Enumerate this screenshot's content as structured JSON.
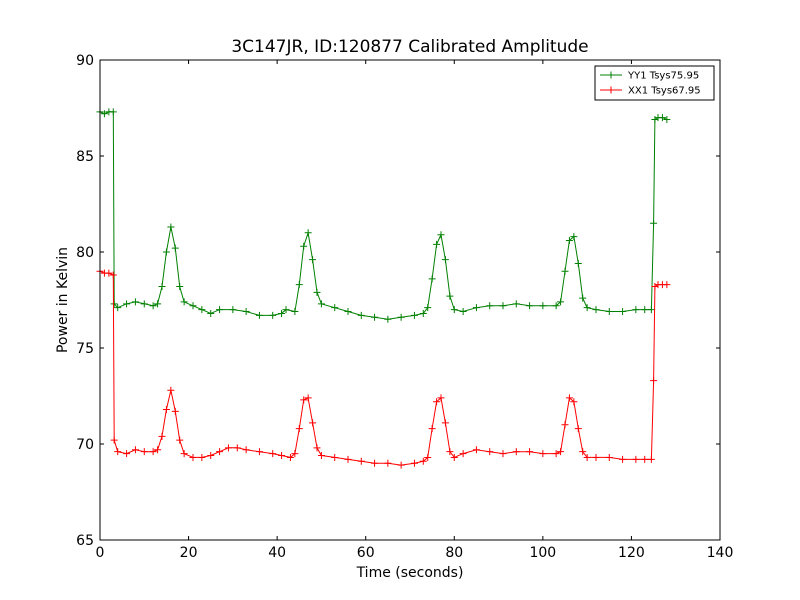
{
  "chart_data": {
    "type": "line",
    "title": "3C147JR, ID:120877 Calibrated Amplitude",
    "xlabel": "Time (seconds)",
    "ylabel": "Power in Kelvin",
    "xlim": [
      0,
      140
    ],
    "ylim": [
      65,
      90
    ],
    "xticks": [
      0,
      20,
      40,
      60,
      80,
      100,
      120,
      140
    ],
    "yticks": [
      65,
      70,
      75,
      80,
      85,
      90
    ],
    "grid": false,
    "legend_position": "top-right",
    "marker": "+",
    "series": [
      {
        "name": "YY1 Tsys75.95",
        "color": "#008000",
        "points": [
          [
            0,
            87.3
          ],
          [
            1,
            87.2
          ],
          [
            2,
            87.3
          ],
          [
            3,
            87.3
          ],
          [
            3.2,
            77.3
          ],
          [
            4,
            77.1
          ],
          [
            6,
            77.3
          ],
          [
            8,
            77.4
          ],
          [
            10,
            77.3
          ],
          [
            12,
            77.2
          ],
          [
            13,
            77.3
          ],
          [
            14,
            78.2
          ],
          [
            15,
            80.0
          ],
          [
            16,
            81.3
          ],
          [
            17,
            80.2
          ],
          [
            18,
            78.2
          ],
          [
            19,
            77.4
          ],
          [
            21,
            77.2
          ],
          [
            23,
            77.0
          ],
          [
            25,
            76.8
          ],
          [
            27,
            77.0
          ],
          [
            30,
            77.0
          ],
          [
            33,
            76.9
          ],
          [
            36,
            76.7
          ],
          [
            39,
            76.7
          ],
          [
            41,
            76.8
          ],
          [
            42,
            77.0
          ],
          [
            44,
            76.9
          ],
          [
            45,
            78.3
          ],
          [
            46,
            80.3
          ],
          [
            47,
            81.0
          ],
          [
            48,
            79.6
          ],
          [
            49,
            77.9
          ],
          [
            50,
            77.3
          ],
          [
            53,
            77.1
          ],
          [
            56,
            76.9
          ],
          [
            59,
            76.7
          ],
          [
            62,
            76.6
          ],
          [
            65,
            76.5
          ],
          [
            68,
            76.6
          ],
          [
            71,
            76.7
          ],
          [
            73,
            76.8
          ],
          [
            74,
            77.1
          ],
          [
            75,
            78.6
          ],
          [
            76,
            80.4
          ],
          [
            77,
            80.9
          ],
          [
            78,
            79.6
          ],
          [
            79,
            77.7
          ],
          [
            80,
            77.0
          ],
          [
            82,
            76.9
          ],
          [
            85,
            77.1
          ],
          [
            88,
            77.2
          ],
          [
            91,
            77.2
          ],
          [
            94,
            77.3
          ],
          [
            97,
            77.2
          ],
          [
            100,
            77.2
          ],
          [
            103,
            77.2
          ],
          [
            104,
            77.4
          ],
          [
            105,
            79.0
          ],
          [
            106,
            80.6
          ],
          [
            107,
            80.8
          ],
          [
            108,
            79.4
          ],
          [
            109,
            77.6
          ],
          [
            110,
            77.1
          ],
          [
            112,
            77.0
          ],
          [
            115,
            76.9
          ],
          [
            118,
            76.9
          ],
          [
            121,
            77.0
          ],
          [
            123,
            77.0
          ],
          [
            124.5,
            77.0
          ],
          [
            125,
            81.5
          ],
          [
            125.3,
            86.9
          ],
          [
            126,
            87.0
          ],
          [
            127,
            87.0
          ],
          [
            128,
            86.9
          ]
        ]
      },
      {
        "name": "XX1 Tsys67.95",
        "color": "#ff0000",
        "points": [
          [
            0,
            79.0
          ],
          [
            1,
            78.9
          ],
          [
            2,
            78.9
          ],
          [
            3,
            78.8
          ],
          [
            3.2,
            70.2
          ],
          [
            4,
            69.6
          ],
          [
            6,
            69.5
          ],
          [
            8,
            69.7
          ],
          [
            10,
            69.6
          ],
          [
            12,
            69.6
          ],
          [
            13,
            69.7
          ],
          [
            14,
            70.4
          ],
          [
            15,
            71.8
          ],
          [
            16,
            72.8
          ],
          [
            17,
            71.7
          ],
          [
            18,
            70.2
          ],
          [
            19,
            69.5
          ],
          [
            21,
            69.3
          ],
          [
            23,
            69.3
          ],
          [
            25,
            69.4
          ],
          [
            27,
            69.6
          ],
          [
            29,
            69.8
          ],
          [
            31,
            69.8
          ],
          [
            33,
            69.7
          ],
          [
            36,
            69.6
          ],
          [
            39,
            69.5
          ],
          [
            41,
            69.4
          ],
          [
            43,
            69.3
          ],
          [
            44,
            69.5
          ],
          [
            45,
            70.8
          ],
          [
            46,
            72.3
          ],
          [
            47,
            72.4
          ],
          [
            48,
            71.1
          ],
          [
            49,
            69.8
          ],
          [
            50,
            69.4
          ],
          [
            53,
            69.3
          ],
          [
            56,
            69.2
          ],
          [
            59,
            69.1
          ],
          [
            62,
            69.0
          ],
          [
            65,
            69.0
          ],
          [
            68,
            68.9
          ],
          [
            71,
            69.0
          ],
          [
            73,
            69.1
          ],
          [
            74,
            69.3
          ],
          [
            75,
            70.8
          ],
          [
            76,
            72.2
          ],
          [
            77,
            72.4
          ],
          [
            78,
            71.1
          ],
          [
            79,
            69.6
          ],
          [
            80,
            69.3
          ],
          [
            82,
            69.5
          ],
          [
            85,
            69.7
          ],
          [
            88,
            69.6
          ],
          [
            91,
            69.5
          ],
          [
            94,
            69.6
          ],
          [
            97,
            69.6
          ],
          [
            100,
            69.5
          ],
          [
            103,
            69.5
          ],
          [
            104,
            69.6
          ],
          [
            105,
            71.0
          ],
          [
            106,
            72.4
          ],
          [
            107,
            72.2
          ],
          [
            108,
            70.8
          ],
          [
            109,
            69.6
          ],
          [
            110,
            69.3
          ],
          [
            112,
            69.3
          ],
          [
            115,
            69.3
          ],
          [
            118,
            69.2
          ],
          [
            121,
            69.2
          ],
          [
            123,
            69.2
          ],
          [
            124.5,
            69.2
          ],
          [
            125,
            73.3
          ],
          [
            125.3,
            78.2
          ],
          [
            126,
            78.3
          ],
          [
            127,
            78.3
          ],
          [
            128,
            78.3
          ]
        ]
      }
    ]
  }
}
